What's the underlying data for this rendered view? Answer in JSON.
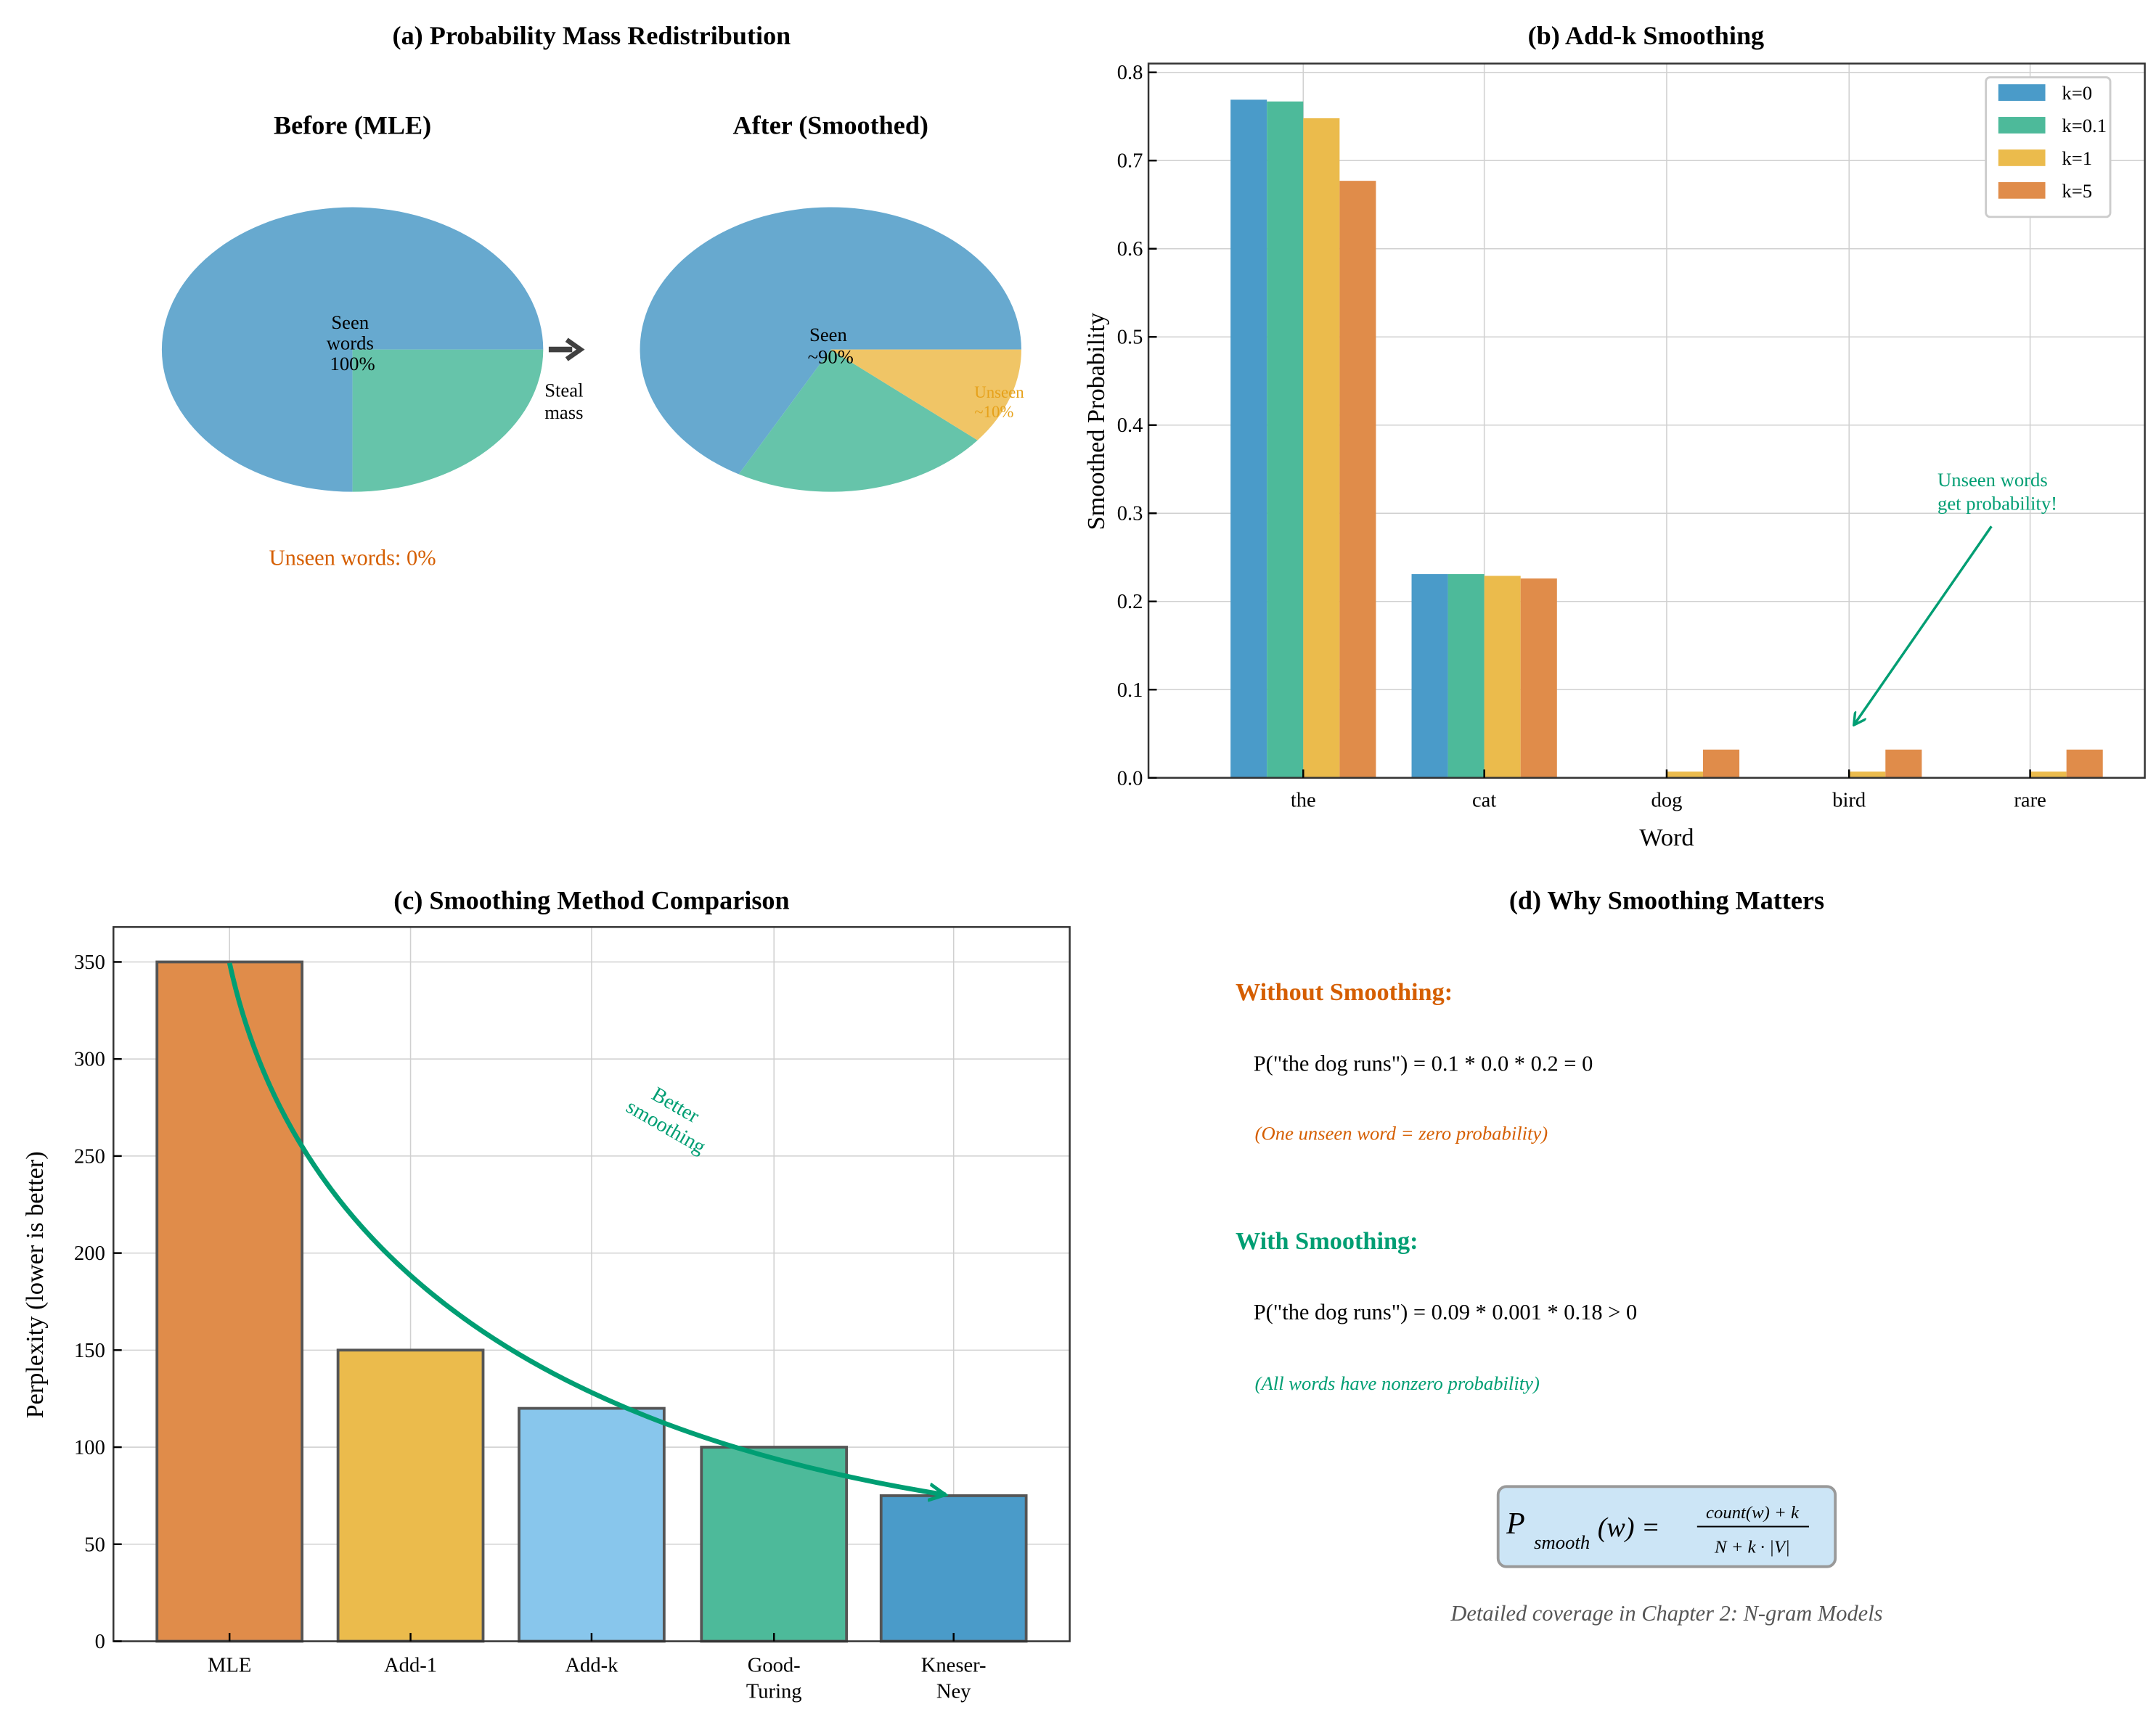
{
  "colors": {
    "orange": "#d55e00",
    "green": "#009e73",
    "yellow": "#e69f00",
    "gray": "#555555"
  },
  "chart_data": [
    {
      "type": "pie",
      "title": "(a) Probability Mass Redistribution",
      "pies": [
        {
          "title": "Before (MLE)",
          "slices": [
            0.75,
            0.25
          ],
          "colors": [
            "#67a9cf",
            "#66c4aa"
          ],
          "label": [
            "Seen",
            "words",
            "100%"
          ]
        },
        {
          "title": "After (Smoothed)",
          "slices": [
            0.67,
            0.22,
            0.11
          ],
          "colors": [
            "#67a9cf",
            "#66c4aa",
            "#f0c566"
          ],
          "label": [
            "Seen",
            "~90%"
          ],
          "unseen_label": [
            "Unseen",
            "~10%"
          ]
        }
      ],
      "arrow_label": [
        "Steal",
        "mass"
      ],
      "note": "Unseen words: 0%"
    },
    {
      "type": "bar",
      "title": "(b) Add-k Smoothing",
      "xlabel": "Word",
      "ylabel": "Smoothed Probability",
      "ylim": [
        0,
        0.81
      ],
      "yticks": [
        "0.0",
        "0.1",
        "0.2",
        "0.3",
        "0.4",
        "0.5",
        "0.6",
        "0.7",
        "0.8"
      ],
      "categories": [
        "the",
        "cat",
        "dog",
        "bird",
        "rare"
      ],
      "series": [
        {
          "name": "k=0",
          "color": "#4a9bc9",
          "values": [
            0.769,
            0.231,
            0.0,
            0.0,
            0.0
          ]
        },
        {
          "name": "k=0.1",
          "color": "#4dba9a",
          "values": [
            0.767,
            0.231,
            0.0005,
            0.0005,
            0.0005
          ]
        },
        {
          "name": "k=1",
          "color": "#ebbb4c",
          "values": [
            0.748,
            0.229,
            0.007,
            0.007,
            0.007
          ]
        },
        {
          "name": "k=5",
          "color": "#e08c4a",
          "values": [
            0.677,
            0.226,
            0.032,
            0.032,
            0.032
          ]
        }
      ],
      "legend": "top-right",
      "annotation": [
        "Unseen words",
        "get probability!"
      ],
      "grid": true
    },
    {
      "type": "bar",
      "title": "(c) Smoothing Method Comparison",
      "ylabel": "Perplexity (lower is better)",
      "ylim": [
        0,
        368
      ],
      "yticks": [
        "0",
        "50",
        "100",
        "150",
        "200",
        "250",
        "300",
        "350"
      ],
      "categories": [
        [
          "MLE"
        ],
        [
          "Add-1"
        ],
        [
          "Add-k"
        ],
        [
          "Good-",
          "Turing"
        ],
        [
          "Kneser-",
          "Ney"
        ]
      ],
      "values": [
        350,
        150,
        120,
        100,
        75
      ],
      "colors": [
        "#e08c4a",
        "#ebbb4c",
        "#88c6ec",
        "#4dba9a",
        "#4a9bc9"
      ],
      "annotation": [
        "Better",
        "smoothing"
      ],
      "grid": true
    }
  ],
  "panel_d": {
    "title": "(d) Why Smoothing Matters",
    "without_heading": "Without Smoothing:",
    "without_eq": "P(\"the dog runs\") = 0.1 * 0.0 * 0.2 = 0",
    "without_note": "(One unseen word = zero probability)",
    "with_heading": "With Smoothing:",
    "with_eq": "P(\"the dog runs\") = 0.09 * 0.001 * 0.18 > 0",
    "with_note": "(All words have nonzero probability)",
    "formula_lhs": "P",
    "formula_sub": "smooth",
    "formula_arg": "(w) =",
    "formula_num": "count(w) + k",
    "formula_den": "N + k · |V|",
    "footer": "Detailed coverage in Chapter 2: N-gram Models"
  }
}
